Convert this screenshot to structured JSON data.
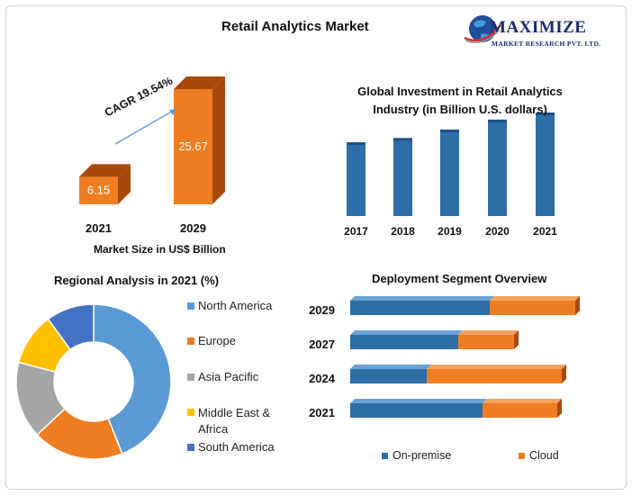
{
  "header": {
    "title": "Retail Analytics Market",
    "logo_main": "MAXIMIZE",
    "logo_sub": "MARKET RESEARCH PVT. LTD."
  },
  "colors": {
    "orange": "#ef7d22",
    "orange_dark": "#a9490c",
    "blue": "#5b9bd5",
    "blue_dark": "#2e6ea6",
    "gray": "#a5a5a5",
    "yellow": "#ffc000",
    "navy": "#4472c4"
  },
  "chart_data": [
    {
      "type": "bar",
      "title": "",
      "categories": [
        "2021",
        "2029"
      ],
      "values": [
        6.15,
        25.67
      ],
      "data_labels": [
        "6.15",
        "25.67"
      ],
      "xlabel": "Market Size in US$ Billion",
      "annotation": "CAGR 19.54%"
    },
    {
      "type": "bar",
      "title": "Global Investment in Retail Analytics Industry (in Billion U.S. dollars)",
      "categories": [
        "2017",
        "2018",
        "2019",
        "2020",
        "2021"
      ],
      "values": [
        5.2,
        5.5,
        6.1,
        6.8,
        7.3
      ],
      "ylim": [
        0,
        8
      ]
    },
    {
      "type": "pie",
      "title": "Regional Analysis in 2021 (%)",
      "labels": [
        "North America",
        "Europe",
        "Asia Pacific",
        "Middle East & Africa",
        "South America"
      ],
      "values": [
        44,
        19,
        16,
        11,
        10
      ],
      "legend_position": "right"
    },
    {
      "type": "bar",
      "title": "Deployment Segment Overview",
      "orientation": "horizontal",
      "stacked": true,
      "categories": [
        "2029",
        "2027",
        "2024",
        "2021"
      ],
      "series": [
        {
          "name": "On-premise",
          "values": [
            155,
            120,
            85,
            147
          ]
        },
        {
          "name": "Cloud",
          "values": [
            95,
            62,
            150,
            83
          ]
        }
      ],
      "legend_position": "bottom"
    }
  ]
}
